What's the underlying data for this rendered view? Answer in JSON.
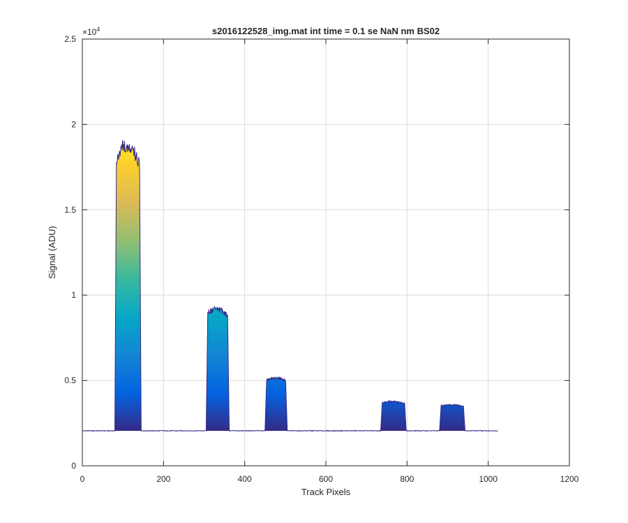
{
  "chart_data": {
    "type": "area",
    "title": "s2016122528_img.mat int time = 0.1 se  NaN nm BS02",
    "xlabel": "Track Pixels",
    "ylabel": "Signal (ADU)",
    "xlim": [
      0,
      1200
    ],
    "ylim": [
      0,
      25000
    ],
    "xticks": [
      0,
      200,
      400,
      600,
      800,
      1000,
      1200
    ],
    "xtick_labels": [
      "0",
      "200",
      "400",
      "600",
      "800",
      "1000",
      "1200"
    ],
    "yticks": [
      0,
      5000,
      10000,
      15000,
      20000,
      25000
    ],
    "ytick_labels": [
      "0",
      "0.5",
      "1",
      "1.5",
      "2",
      "2.5"
    ],
    "y_exponent_label": "×10",
    "y_exponent_power": "4",
    "grid": true,
    "colormap": [
      "#352a87",
      "#0363e1",
      "#1485d4",
      "#06a7c6",
      "#38b99e",
      "#92bf73",
      "#d9ba56",
      "#fcce2e",
      "#f9fb0e"
    ],
    "line_color": "#352a87",
    "baseline": 2050,
    "x_extent": [
      1,
      1024
    ],
    "peaks": [
      {
        "start": 80,
        "end": 145,
        "plateau": 19000
      },
      {
        "start": 305,
        "end": 362,
        "plateau": 9300
      },
      {
        "start": 450,
        "end": 505,
        "plateau": 5200
      },
      {
        "start": 735,
        "end": 798,
        "plateau": 3800
      },
      {
        "start": 880,
        "end": 943,
        "plateau": 3600
      }
    ]
  }
}
